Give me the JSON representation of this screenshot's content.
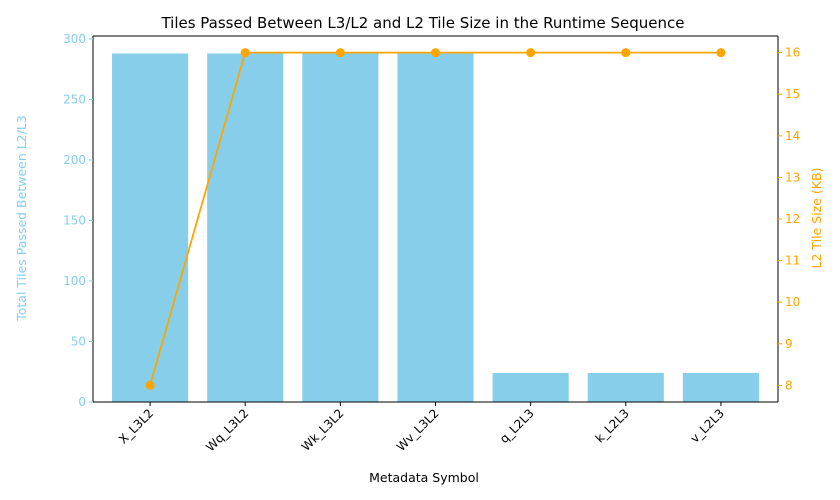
{
  "chart_data": {
    "type": "bar",
    "title": "Tiles Passed Between L3/L2 and L2 Tile Size in the Runtime Sequence",
    "xlabel": "Metadata Symbol",
    "categories": [
      "X_L3L2",
      "Wq_L3L2",
      "Wk_L3L2",
      "Wv_L3L2",
      "q_L2L3",
      "k_L2L3",
      "v_L2L3"
    ],
    "series": [
      {
        "name": "Total Tiles Passed Between L2/L3",
        "type": "bar",
        "axis": "left",
        "color": "#87CEEB",
        "values": [
          288,
          288,
          288,
          288,
          24,
          24,
          24
        ]
      },
      {
        "name": "L2 Tile Size (KB)",
        "type": "line",
        "axis": "right",
        "color": "#FFA500",
        "marker": "circle",
        "values": [
          8,
          16,
          16,
          16,
          16,
          16,
          16
        ]
      }
    ],
    "y_left": {
      "label": "Total Tiles Passed Between L2/L3",
      "ylim": [
        0,
        302.4
      ],
      "ticks": [
        0,
        50,
        100,
        150,
        200,
        250,
        300
      ],
      "color": "#87CEEB"
    },
    "y_right": {
      "label": "L2 Tile Size (KB)",
      "ylim": [
        7.6,
        16.4
      ],
      "ticks": [
        8,
        9,
        10,
        11,
        12,
        13,
        14,
        15,
        16
      ],
      "color": "#FFA500"
    },
    "xtick_rotation_deg": 45,
    "grid": false,
    "legend": "none"
  }
}
